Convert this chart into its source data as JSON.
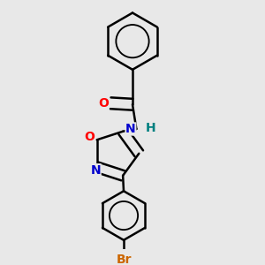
{
  "bg_color": "#e8e8e8",
  "bond_color": "#000000",
  "bond_width": 1.8,
  "atom_colors": {
    "O_carbonyl": "#ff0000",
    "O_ring": "#ff0000",
    "N": "#0000cd",
    "H": "#008080",
    "Br": "#cc6600",
    "C": "#000000"
  },
  "font_size_atoms": 10,
  "font_size_br": 10,
  "font_size_H": 10
}
